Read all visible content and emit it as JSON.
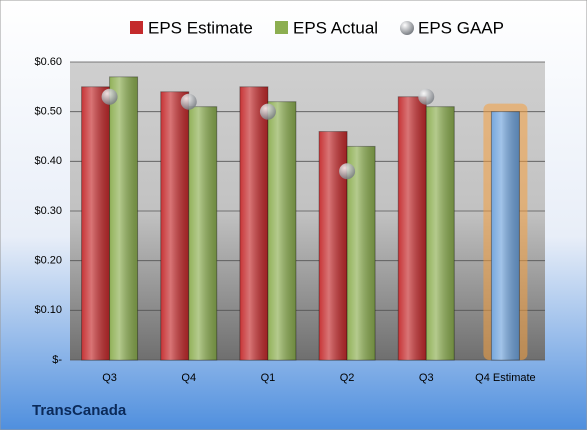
{
  "company": "TransCanada",
  "chart_data": {
    "type": "bar",
    "categories": [
      "Q3",
      "Q4",
      "Q1",
      "Q2",
      "Q3",
      "Q4 Estimate"
    ],
    "series": [
      {
        "name": "EPS Estimate",
        "color": "#c42a2c",
        "values": [
          0.55,
          0.54,
          0.55,
          0.46,
          0.53,
          0.5
        ],
        "point_colors": [
          null,
          null,
          null,
          null,
          null,
          "#6fa3dc"
        ]
      },
      {
        "name": "EPS Actual",
        "color": "#8cae50",
        "values": [
          0.57,
          0.51,
          0.52,
          0.43,
          0.51,
          null
        ]
      },
      {
        "name": "EPS GAAP",
        "color": "#b4b8bc",
        "marker": "circle",
        "values": [
          0.53,
          0.52,
          0.5,
          0.38,
          0.53,
          null
        ]
      }
    ],
    "ylim": [
      0,
      0.6
    ],
    "yticks": [
      {
        "value": 0,
        "label": "$-"
      },
      {
        "value": 0.1,
        "label": "$0.10"
      },
      {
        "value": 0.2,
        "label": "$0.20"
      },
      {
        "value": 0.3,
        "label": "$0.30"
      },
      {
        "value": 0.4,
        "label": "$0.40"
      },
      {
        "value": 0.5,
        "label": "$0.50"
      },
      {
        "value": 0.6,
        "label": "$0.60"
      }
    ],
    "grid": true,
    "legend": "top"
  }
}
